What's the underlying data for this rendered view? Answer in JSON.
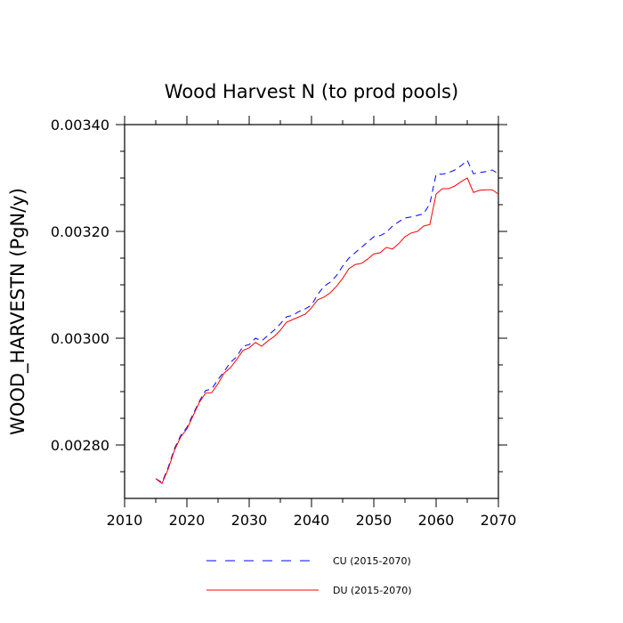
{
  "chart_data": {
    "type": "line",
    "title": "Wood Harvest N (to prod pools)",
    "xlabel": "",
    "ylabel": "WOOD_HARVESTN  (PgN/y)",
    "xlim": [
      2010,
      2070
    ],
    "ylim": [
      0.0027,
      0.0034
    ],
    "x_ticks": [
      2010,
      2020,
      2030,
      2040,
      2050,
      2060,
      2070
    ],
    "x_tick_labels": [
      "2010",
      "2020",
      "2030",
      "2040",
      "2050",
      "2060",
      "2070"
    ],
    "y_ticks": [
      0.0028,
      0.003,
      0.0032,
      0.0034
    ],
    "y_tick_labels": [
      "0.00280",
      "0.00300",
      "0.00320",
      "0.00340"
    ],
    "legend_position": "bottom",
    "x": [
      2015,
      2016,
      2017,
      2018,
      2019,
      2020,
      2021,
      2022,
      2023,
      2024,
      2025,
      2026,
      2027,
      2028,
      2029,
      2030,
      2031,
      2032,
      2033,
      2034,
      2035,
      2036,
      2037,
      2038,
      2039,
      2040,
      2041,
      2042,
      2043,
      2044,
      2045,
      2046,
      2047,
      2048,
      2049,
      2050,
      2051,
      2052,
      2053,
      2054,
      2055,
      2056,
      2057,
      2058,
      2059,
      2060,
      2061,
      2062,
      2063,
      2064,
      2065,
      2066,
      2067,
      2068,
      2069,
      2070
    ],
    "series": [
      {
        "name": "CU (2015-2070)",
        "color": "#0000ff",
        "dash": "dashed",
        "values": [
          0.002737,
          0.00273,
          0.002758,
          0.002793,
          0.002818,
          0.002833,
          0.002858,
          0.002882,
          0.002902,
          0.002905,
          0.002923,
          0.002938,
          0.002955,
          0.002965,
          0.002985,
          0.002988,
          0.003,
          0.002995,
          0.003005,
          0.003015,
          0.003027,
          0.00304,
          0.003043,
          0.00305,
          0.003055,
          0.003062,
          0.003082,
          0.003097,
          0.003105,
          0.003117,
          0.003135,
          0.00315,
          0.00316,
          0.00317,
          0.00318,
          0.00319,
          0.003192,
          0.003198,
          0.00321,
          0.003218,
          0.003225,
          0.003227,
          0.00323,
          0.003233,
          0.003252,
          0.003307,
          0.003307,
          0.00331,
          0.003315,
          0.003323,
          0.003333,
          0.003308,
          0.00331,
          0.003312,
          0.003315,
          0.003308
        ]
      },
      {
        "name": "DU (2015-2070)",
        "color": "#ff0000",
        "dash": "solid",
        "values": [
          0.002737,
          0.002728,
          0.002755,
          0.00279,
          0.002815,
          0.00283,
          0.002855,
          0.00288,
          0.002897,
          0.002898,
          0.002915,
          0.002935,
          0.002945,
          0.00296,
          0.002977,
          0.002982,
          0.002992,
          0.002985,
          0.002995,
          0.003003,
          0.003015,
          0.00303,
          0.003035,
          0.00304,
          0.003045,
          0.003057,
          0.003072,
          0.003077,
          0.003085,
          0.003097,
          0.003112,
          0.00313,
          0.003138,
          0.00314,
          0.003148,
          0.003158,
          0.00316,
          0.00317,
          0.003167,
          0.003177,
          0.00319,
          0.003197,
          0.0032,
          0.00321,
          0.003213,
          0.00327,
          0.00328,
          0.00328,
          0.003285,
          0.003293,
          0.0033,
          0.003273,
          0.003277,
          0.003278,
          0.003278,
          0.00327
        ]
      }
    ]
  }
}
